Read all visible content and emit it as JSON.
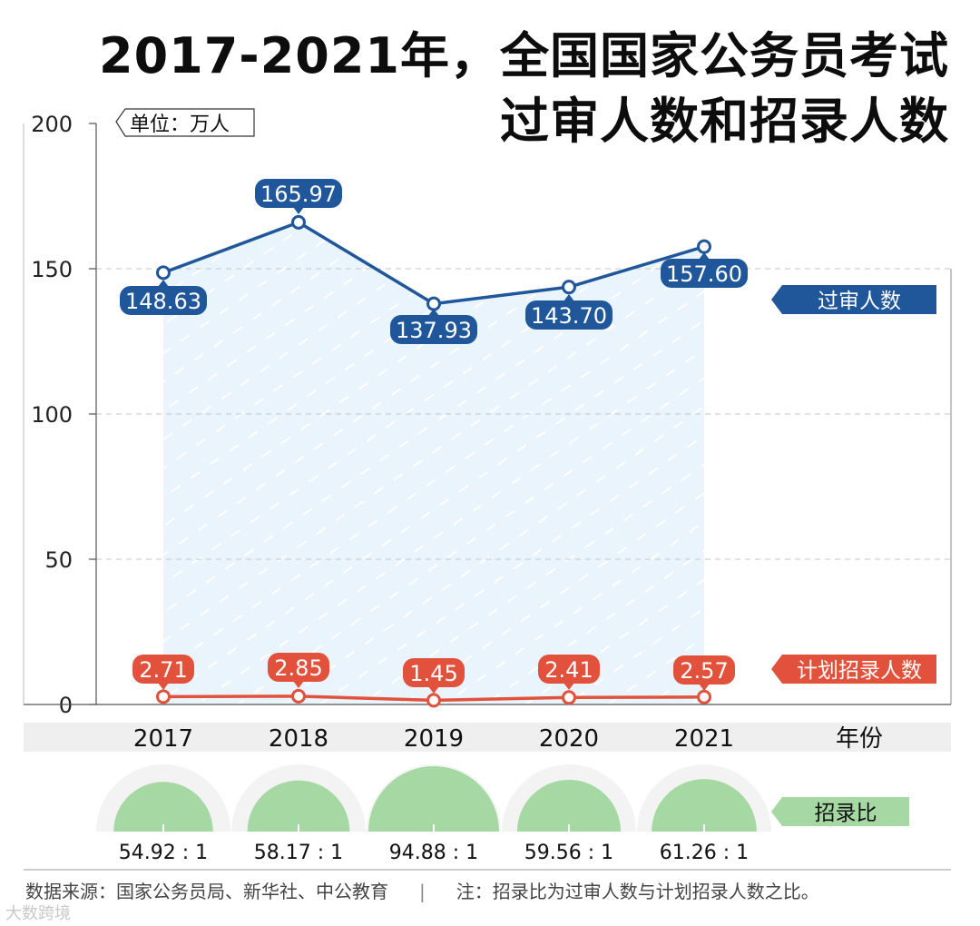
{
  "title_line1": "2017-2021年，全国国家公务员考试",
  "title_line2": "过审人数和招录人数",
  "unit_label": "单位：万人",
  "x_axis_label": "年份",
  "ratio_label": "招录比",
  "source": "数据来源：国家公务员局、新华社、中公教育",
  "separator": "|",
  "note": "注：招录比为过审人数与计划招录人数之比。",
  "watermark": "大数跨境",
  "colors": {
    "blue": "#20579b",
    "red": "#e2513b",
    "green": "#a6d8a3",
    "area": "#eaf4fd",
    "axis": "#555555"
  },
  "chart_data": {
    "type": "line",
    "x": [
      "2017",
      "2018",
      "2019",
      "2020",
      "2021"
    ],
    "ylim": [
      0,
      200
    ],
    "yticks": [
      "0",
      "50",
      "100",
      "150",
      "200"
    ],
    "series": [
      {
        "name": "过审人数",
        "values": [
          148.63,
          165.97,
          137.93,
          143.7,
          157.6
        ],
        "labels": [
          "148.63",
          "165.97",
          "137.93",
          "143.70",
          "157.60"
        ]
      },
      {
        "name": "计划招录人数",
        "values": [
          2.71,
          2.85,
          1.45,
          2.41,
          2.57
        ],
        "labels": [
          "2.71",
          "2.85",
          "1.45",
          "2.41",
          "2.57"
        ]
      }
    ],
    "ratios": {
      "values": [
        54.92,
        58.17,
        94.88,
        59.56,
        61.26
      ],
      "labels": [
        "54.92 : 1",
        "58.17 : 1",
        "94.88 : 1",
        "59.56 : 1",
        "61.26 : 1"
      ]
    }
  }
}
